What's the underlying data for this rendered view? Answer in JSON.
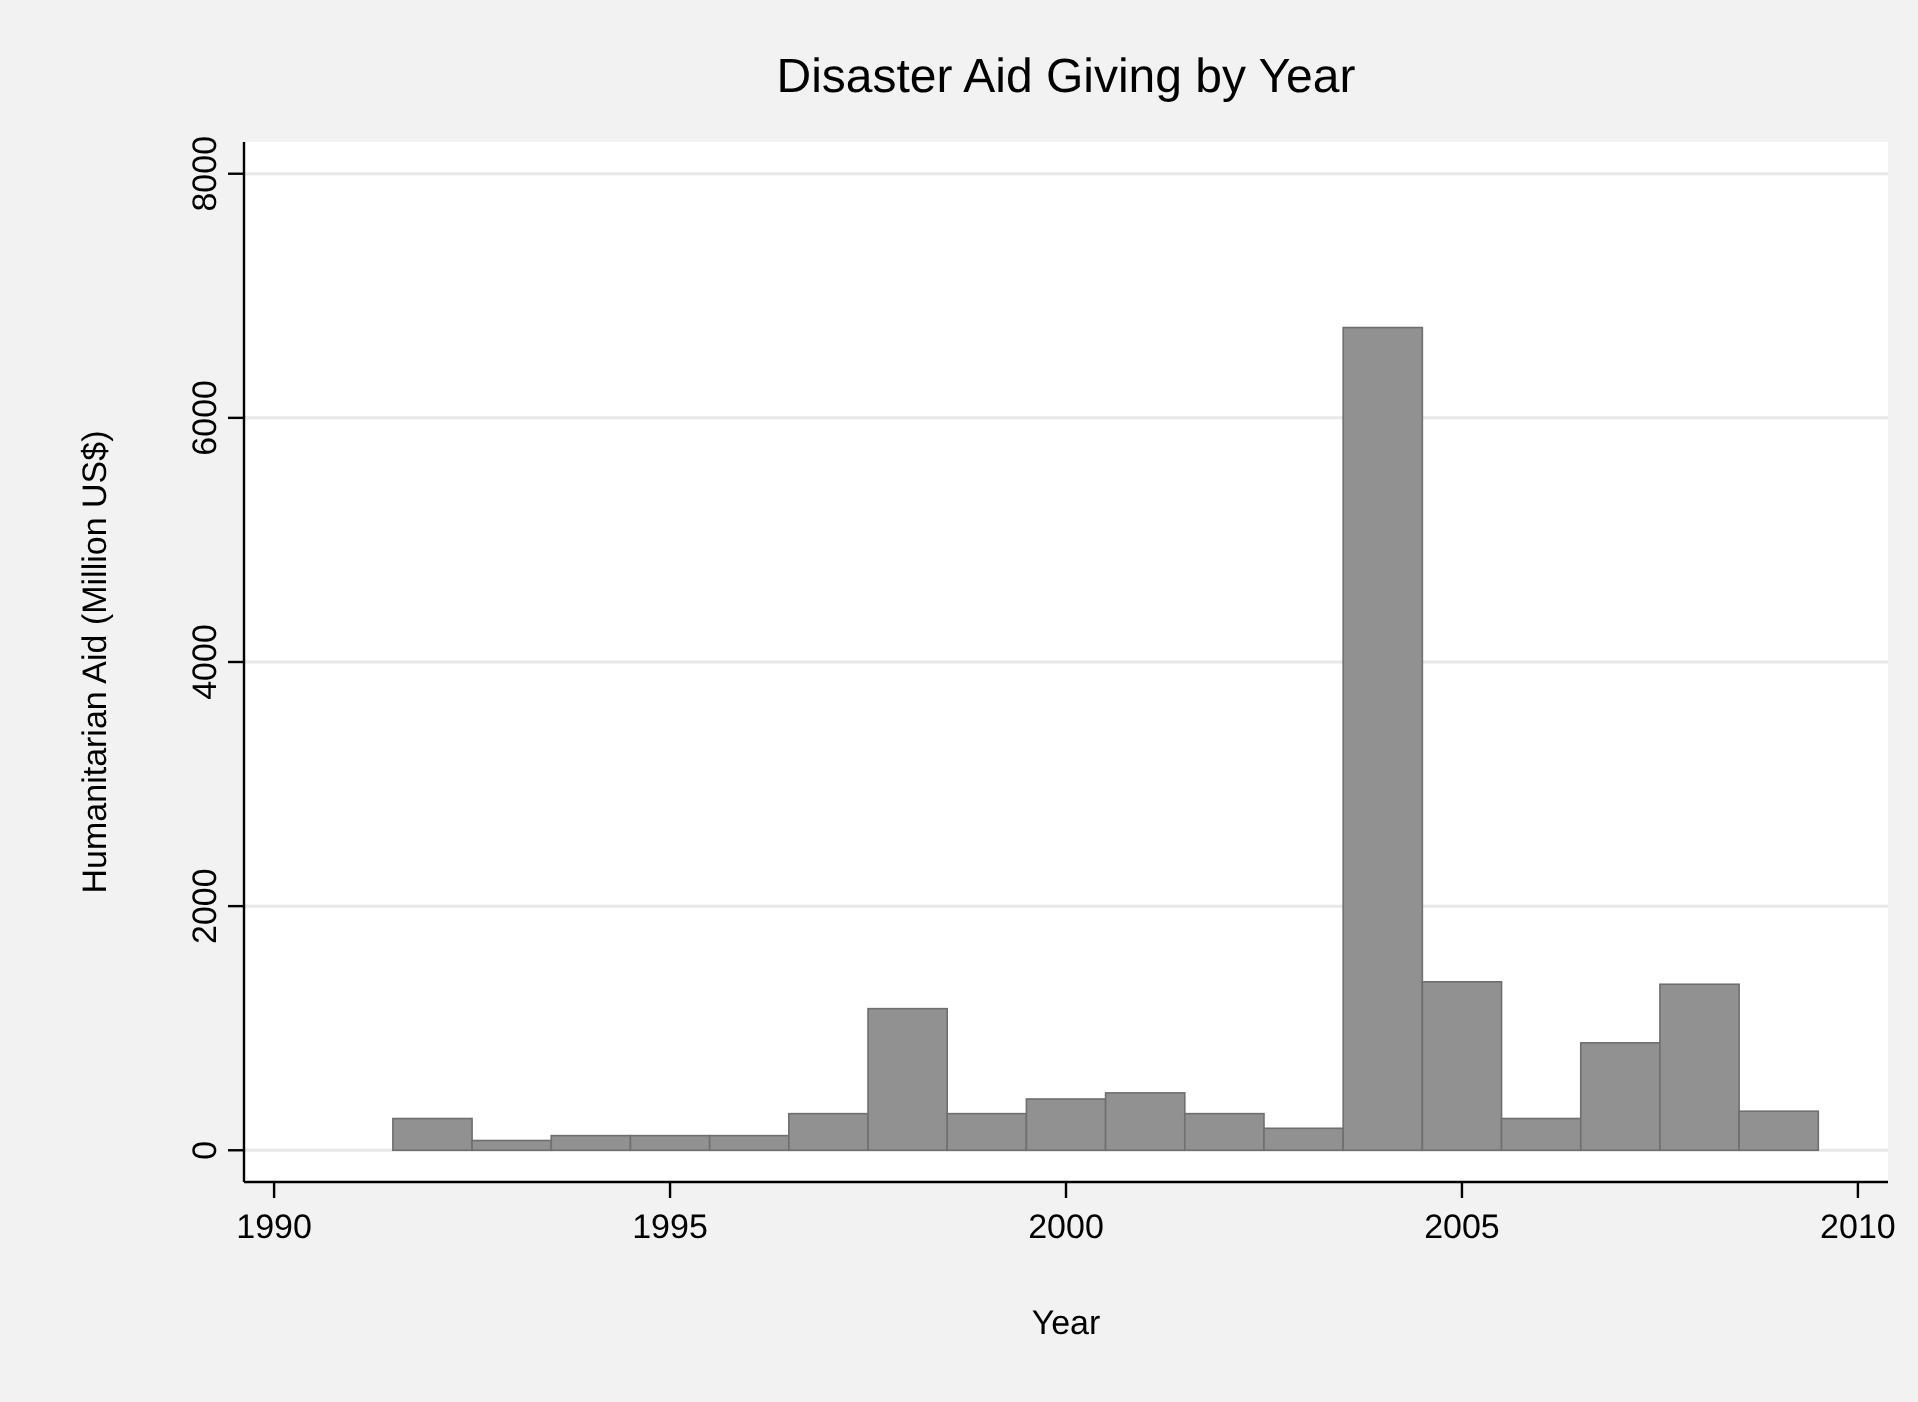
{
  "chart_data": {
    "type": "bar",
    "title": "Disaster Aid Giving by Year",
    "xlabel": "Year",
    "ylabel": "Humanitarian Aid (Million US$)",
    "x": [
      1992,
      1993,
      1994,
      1995,
      1996,
      1997,
      1998,
      1999,
      2000,
      2001,
      2002,
      2003,
      2004,
      2005,
      2006,
      2007,
      2008,
      2009
    ],
    "values": [
      260,
      80,
      120,
      120,
      120,
      300,
      1160,
      300,
      420,
      470,
      300,
      180,
      6740,
      1380,
      260,
      880,
      1360,
      320
    ],
    "color": "#919191",
    "xlim": [
      1989.62,
      2010.38
    ],
    "xticks": [
      1990,
      1995,
      2000,
      2005,
      2010
    ],
    "ylim": [
      -260,
      8260
    ],
    "yticks": [
      0,
      2000,
      4000,
      6000,
      8000
    ],
    "grid": "y"
  }
}
